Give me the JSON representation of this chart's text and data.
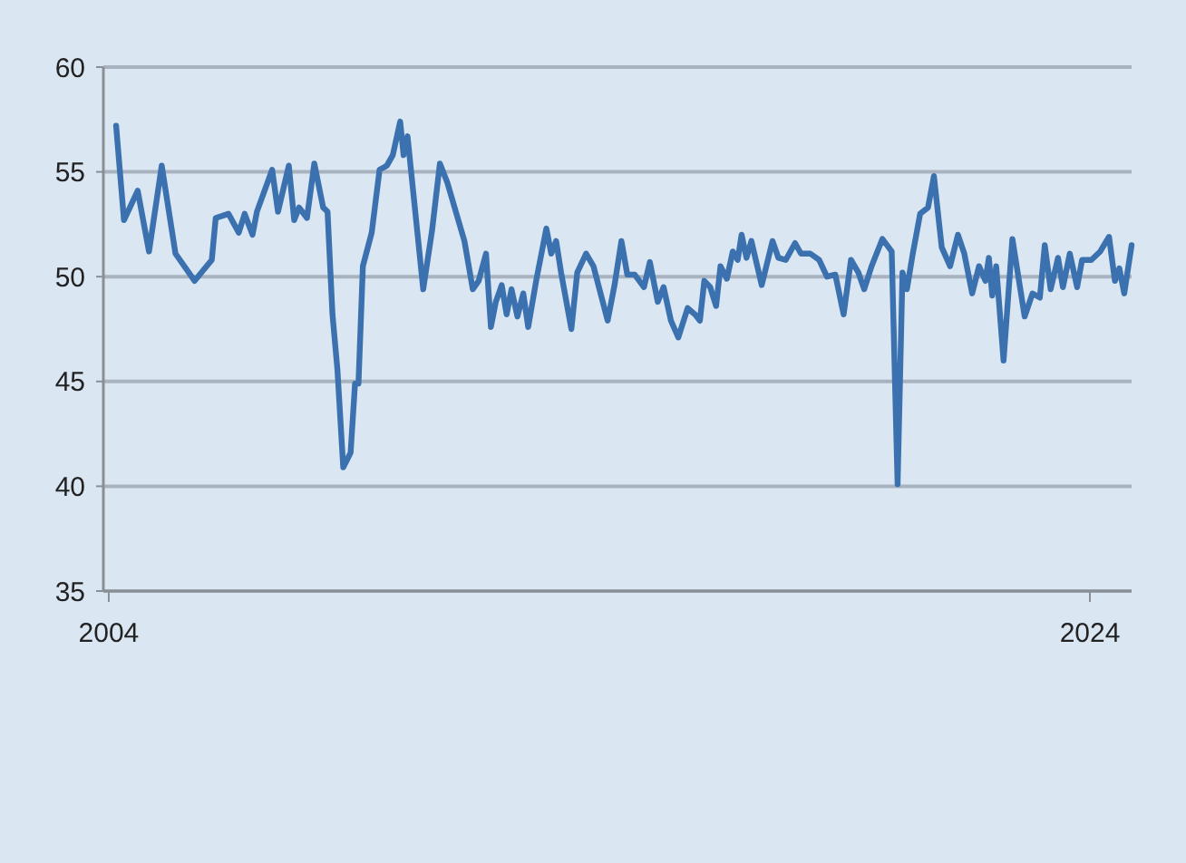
{
  "chart_data": {
    "type": "line",
    "x": [
      2004.15,
      2004.31,
      2004.59,
      2004.82,
      2005.08,
      2005.36,
      2005.75,
      2006.1,
      2006.18,
      2006.44,
      2006.65,
      2006.77,
      2006.93,
      2007.02,
      2007.33,
      2007.45,
      2007.67,
      2007.78,
      2007.88,
      2008.04,
      2008.19,
      2008.37,
      2008.46,
      2008.56,
      2008.66,
      2008.78,
      2008.93,
      2009.02,
      2009.09,
      2009.18,
      2009.36,
      2009.52,
      2009.67,
      2009.79,
      2009.94,
      2010.01,
      2010.09,
      2010.41,
      2010.59,
      2010.75,
      2010.9,
      2011.25,
      2011.42,
      2011.54,
      2011.69,
      2011.79,
      2011.89,
      2012.01,
      2012.11,
      2012.21,
      2012.33,
      2012.45,
      2012.55,
      2012.72,
      2012.92,
      2013.02,
      2013.12,
      2013.22,
      2013.43,
      2013.55,
      2013.73,
      2013.88,
      2014.17,
      2014.31,
      2014.45,
      2014.57,
      2014.72,
      2014.91,
      2015.03,
      2015.19,
      2015.31,
      2015.46,
      2015.61,
      2015.8,
      2015.95,
      2016.05,
      2016.14,
      2016.26,
      2016.38,
      2016.47,
      2016.6,
      2016.72,
      2016.82,
      2016.9,
      2017.0,
      2017.1,
      2017.31,
      2017.53,
      2017.65,
      2017.8,
      2017.99,
      2018.11,
      2018.3,
      2018.48,
      2018.64,
      2018.81,
      2018.98,
      2019.13,
      2019.28,
      2019.4,
      2019.55,
      2019.77,
      2019.96,
      2020.08,
      2020.18,
      2020.27,
      2020.39,
      2020.54,
      2020.7,
      2020.82,
      2020.98,
      2021.15,
      2021.31,
      2021.44,
      2021.6,
      2021.74,
      2021.87,
      2021.94,
      2022.01,
      2022.09,
      2022.24,
      2022.42,
      2022.67,
      2022.83,
      2022.98,
      2023.08,
      2023.2,
      2023.35,
      2023.45,
      2023.59,
      2023.74,
      2023.84,
      2024.03,
      2024.21,
      2024.39,
      2024.51,
      2024.6,
      2024.7,
      2024.85
    ],
    "series": [
      {
        "color": "#3b71ae",
        "values": [
          57.2,
          52.7,
          54.1,
          51.2,
          55.3,
          51.1,
          49.8,
          50.8,
          52.8,
          53.0,
          52.1,
          53.0,
          52.0,
          53.1,
          55.1,
          53.1,
          55.3,
          52.7,
          53.3,
          52.8,
          55.4,
          53.3,
          53.1,
          48.2,
          45.6,
          40.9,
          41.6,
          44.9,
          44.9,
          50.5,
          52.1,
          55.1,
          55.3,
          55.8,
          57.4,
          55.8,
          56.7,
          49.4,
          52.2,
          55.4,
          54.5,
          51.7,
          49.4,
          49.8,
          51.1,
          47.6,
          48.8,
          49.6,
          48.2,
          49.4,
          48.1,
          49.2,
          47.6,
          49.9,
          52.3,
          51.1,
          51.7,
          50.2,
          47.5,
          50.2,
          51.1,
          50.5,
          47.9,
          49.6,
          51.7,
          50.1,
          50.1,
          49.5,
          50.7,
          48.8,
          49.5,
          47.9,
          47.1,
          48.5,
          48.2,
          47.9,
          49.8,
          49.5,
          48.6,
          50.5,
          49.9,
          51.2,
          50.8,
          52.0,
          50.9,
          51.7,
          49.6,
          51.7,
          50.9,
          50.8,
          51.6,
          51.1,
          51.1,
          50.8,
          50.0,
          50.1,
          48.2,
          50.8,
          50.2,
          49.4,
          50.5,
          51.8,
          51.2,
          40.1,
          50.2,
          49.4,
          51.1,
          53.0,
          53.3,
          54.8,
          51.4,
          50.5,
          52.0,
          51.1,
          49.2,
          50.5,
          49.8,
          50.9,
          49.1,
          50.5,
          46.0,
          51.8,
          48.1,
          49.2,
          49.0,
          51.5,
          49.4,
          50.9,
          49.5,
          51.1,
          49.5,
          50.8,
          50.8,
          51.2,
          51.9,
          49.8,
          50.4,
          49.2,
          51.5
        ]
      }
    ],
    "xlim": [
      2003.89,
      2024.85
    ],
    "xticks": [
      {
        "value": 2004,
        "label": "2004"
      },
      {
        "value": 2024,
        "label": "2024"
      }
    ],
    "ylim": [
      35,
      60
    ],
    "yticks": [
      35,
      40,
      45,
      50,
      55,
      60
    ],
    "grid": "y"
  }
}
